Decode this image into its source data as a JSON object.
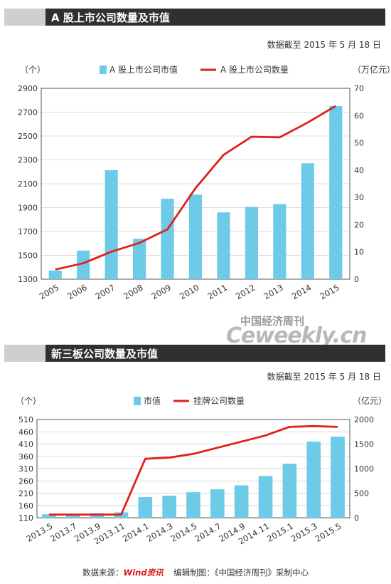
{
  "chart_data": [
    {
      "type": "bar+line",
      "title": "A 股上市公司数量及市值",
      "cutoff_note": "数据截至 2015 年 5 月 18 日",
      "left_axis_unit": "（个）",
      "right_axis_unit": "（万亿元）",
      "legend": {
        "bar_label": "A 股上市公司市值",
        "line_label": "A 股上市公司数量",
        "placement": "top-center"
      },
      "categories": [
        "2005",
        "2006",
        "2007",
        "2008",
        "2009",
        "2010",
        "2011",
        "2012",
        "2013",
        "2014",
        "2015"
      ],
      "bar_series": {
        "name": "A 股上市公司市值",
        "axis": "right",
        "values": [
          3.2,
          10.5,
          40,
          14.8,
          29.5,
          31,
          24.5,
          26.5,
          27.5,
          42.5,
          63.5
        ]
      },
      "line_series": {
        "name": "A 股上市公司数量",
        "axis": "left",
        "values": [
          1381,
          1434,
          1530,
          1604,
          1718,
          2063,
          2342,
          2494,
          2489,
          2613,
          2752
        ]
      },
      "left_ylim": [
        1300,
        2900
      ],
      "left_ticks": [
        1300,
        1500,
        1700,
        1900,
        2100,
        2300,
        2500,
        2700,
        2900
      ],
      "right_ylim": [
        0,
        70
      ],
      "right_ticks": [
        0,
        10,
        20,
        30,
        40,
        50,
        60,
        70
      ],
      "colors": {
        "bar": "#6dcbe8",
        "line": "#e0201b"
      }
    },
    {
      "type": "bar+line",
      "title": "新三板公司数量及市值",
      "cutoff_note": "数据截至 2015 年 5 月 18 日",
      "left_axis_unit": "（个）",
      "right_axis_unit": "（亿元）",
      "legend": {
        "bar_label": "市值",
        "line_label": "挂牌公司数量",
        "placement": "top-center"
      },
      "categories": [
        "2013.5",
        "2013.7",
        "2013.9",
        "2013.11",
        "2014.1",
        "2014.3",
        "2014.5",
        "2014.7",
        "2014.9",
        "2014.11",
        "2015.1",
        "2015.3",
        "2015.5"
      ],
      "bar_series": {
        "name": "市值",
        "axis": "right",
        "values": [
          70,
          85,
          95,
          110,
          420,
          450,
          520,
          580,
          660,
          850,
          1100,
          1550,
          1650
        ]
      },
      "line_series": {
        "name": "挂牌公司数量",
        "axis": "left",
        "values": [
          123,
          123,
          123,
          123,
          350,
          355,
          370,
          395,
          420,
          445,
          480,
          483,
          480
        ]
      },
      "left_ylim": [
        110,
        510
      ],
      "left_ticks": [
        110,
        160,
        210,
        260,
        310,
        360,
        410,
        460,
        510
      ],
      "right_ylim": [
        0,
        2000
      ],
      "right_ticks": [
        0,
        500,
        1000,
        1500,
        2000
      ],
      "colors": {
        "bar": "#6dcbe8",
        "line": "#e0201b"
      }
    }
  ],
  "watermark": {
    "cn": "中国经济周刊",
    "en": "Ceweekly.cn"
  },
  "footer": {
    "source_label": "数据来源：",
    "source_brand": "Wind资讯",
    "credit": "编辑制图：《中国经济周刊》采制中心"
  }
}
